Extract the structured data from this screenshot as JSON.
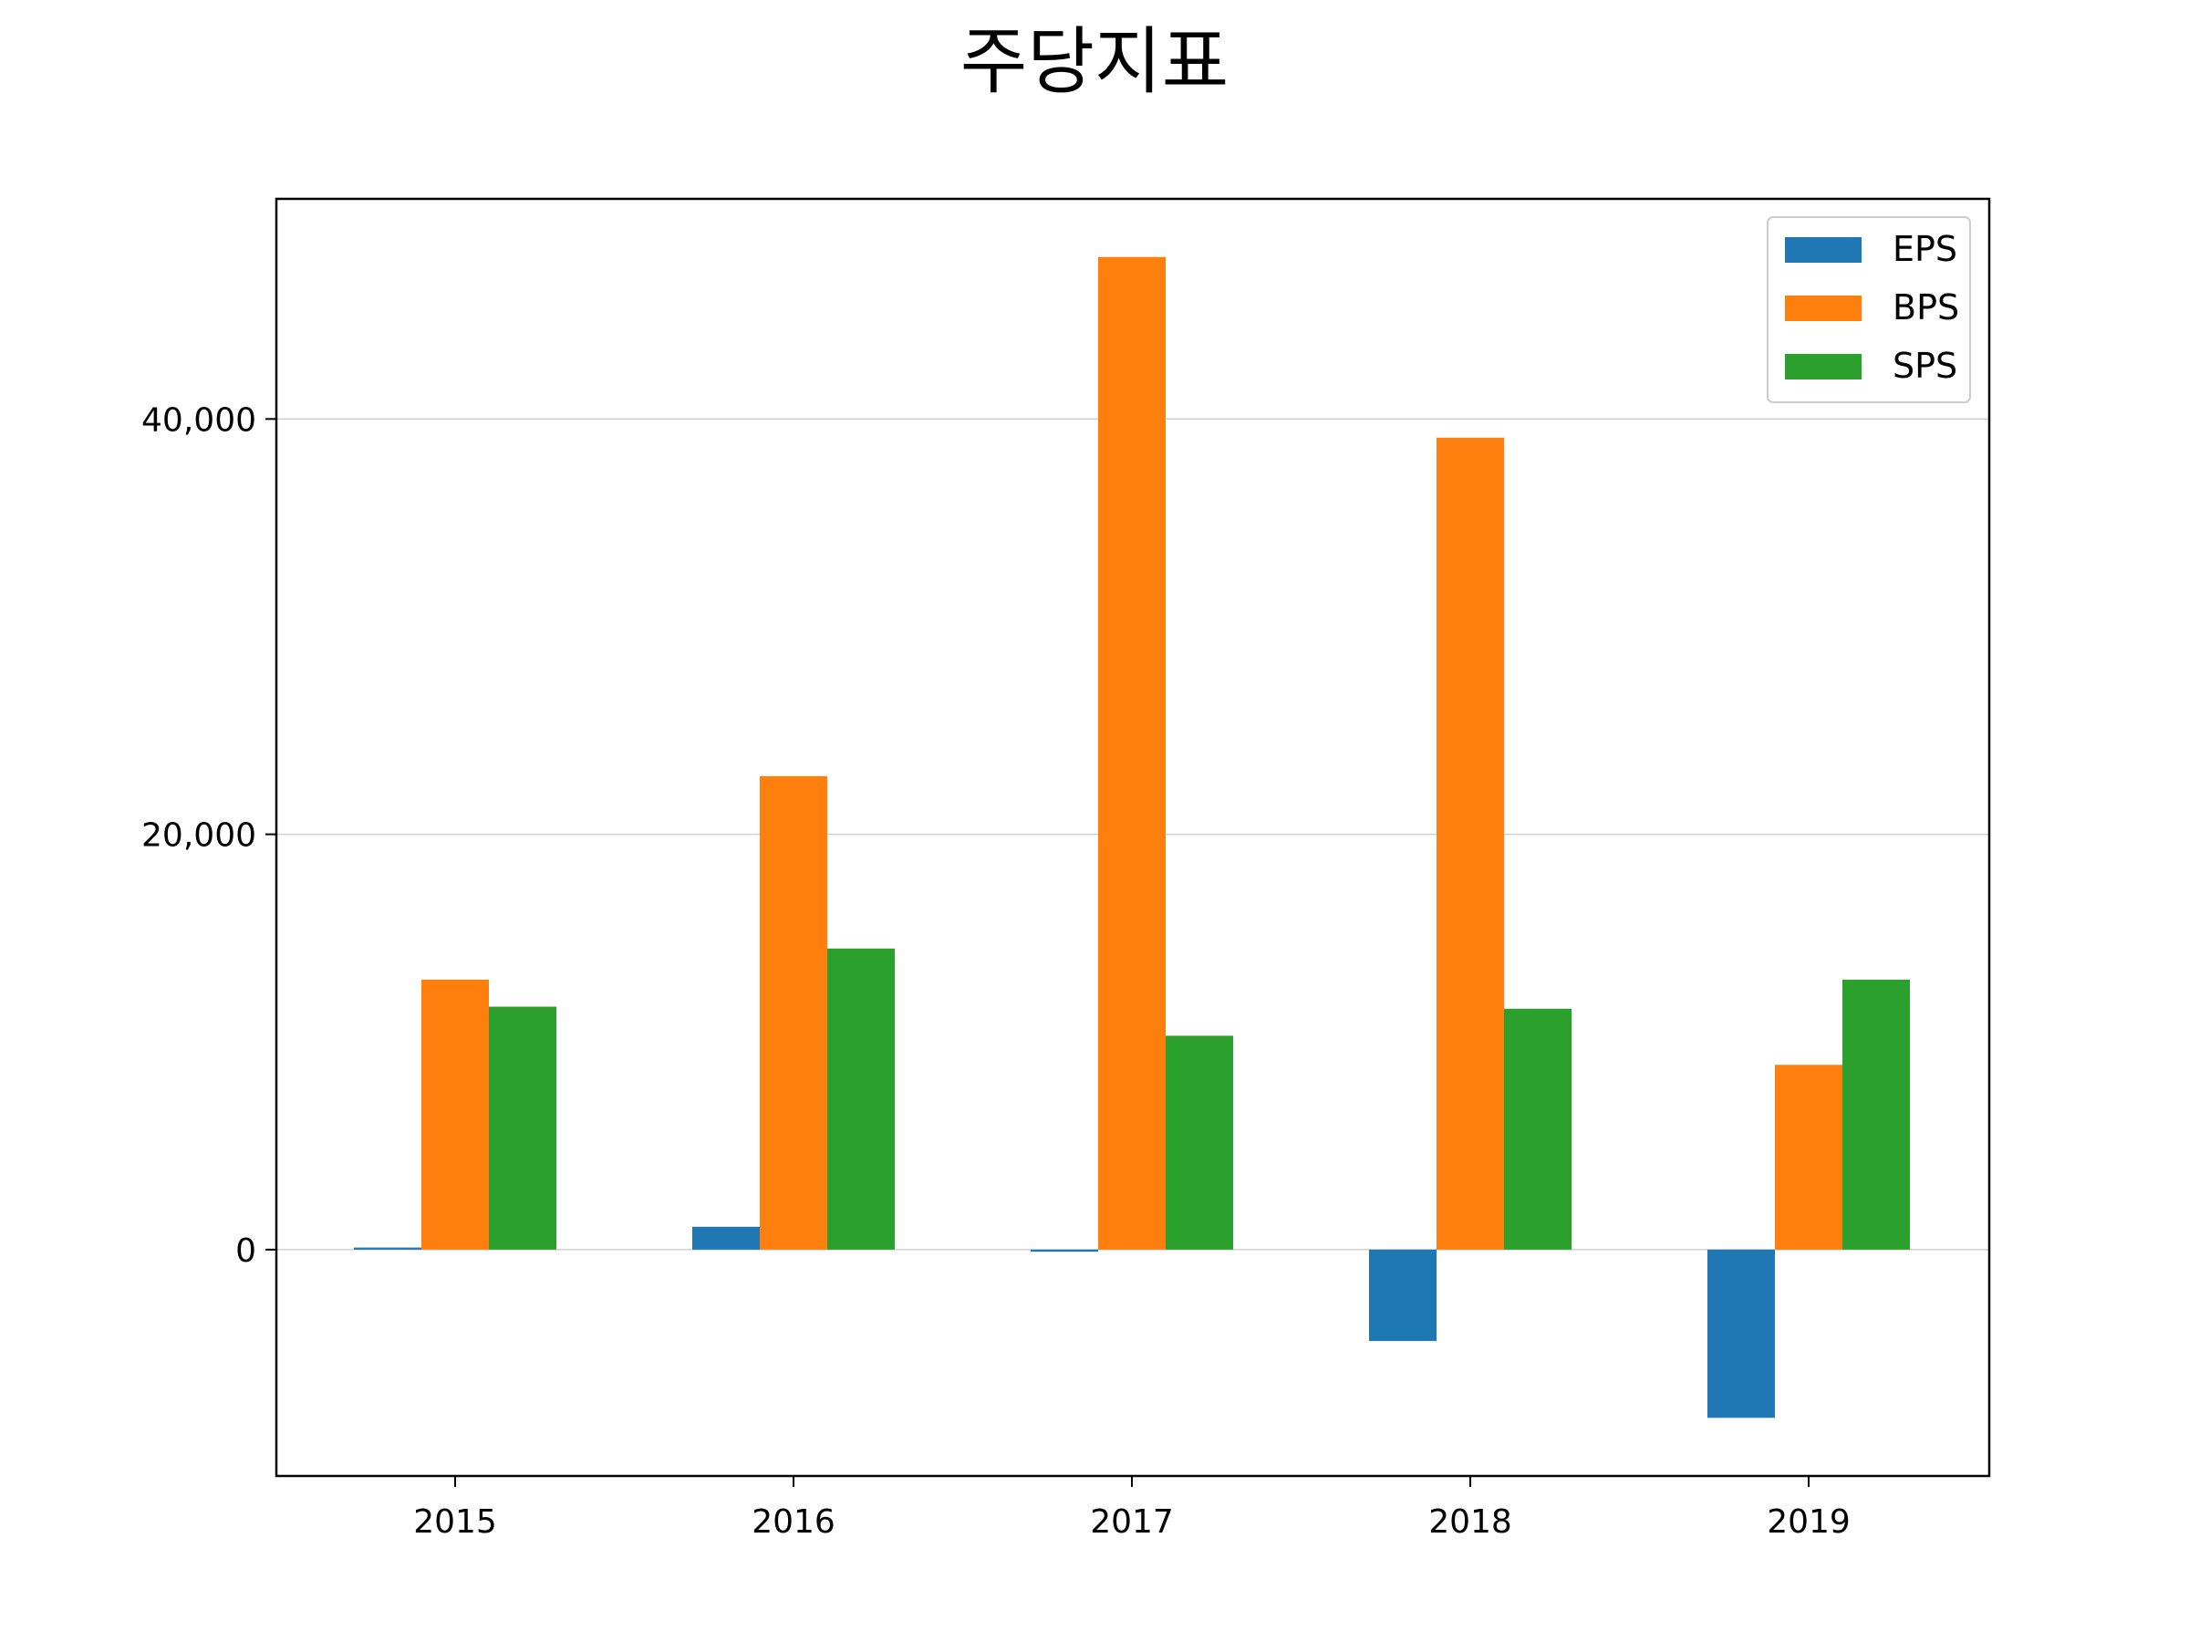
{
  "chart_data": {
    "type": "bar",
    "title": "주당지표",
    "xlabel": "",
    "ylabel": "",
    "categories": [
      "2015",
      "2016",
      "2017",
      "2018",
      "2019"
    ],
    "series": [
      {
        "name": "EPS",
        "color": "#1f77b4",
        "values": [
          100,
          1100,
          -100,
          -4400,
          -8100
        ]
      },
      {
        "name": "BPS",
        "color": "#ff7f0e",
        "values": [
          13000,
          22800,
          47800,
          39100,
          8900
        ]
      },
      {
        "name": "SPS",
        "color": "#2ca02c",
        "values": [
          11700,
          14500,
          10300,
          11600,
          13000
        ]
      }
    ],
    "ylim": [
      -10900,
      50600
    ],
    "yticks": [
      0,
      20000,
      40000
    ],
    "ytick_labels": [
      "0",
      "20,000",
      "40,000"
    ],
    "grid": "horizontal",
    "legend_position": "top-right"
  }
}
